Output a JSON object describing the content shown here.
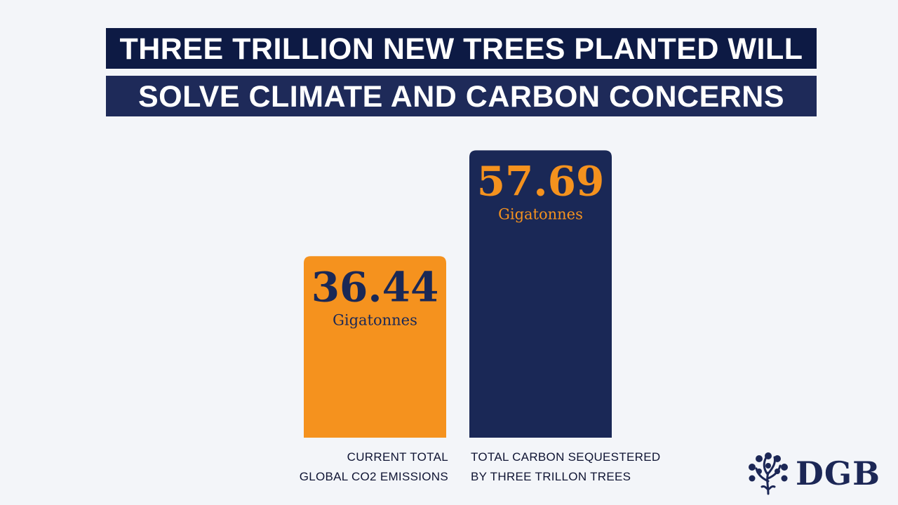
{
  "header": {
    "line1": "THREE TRILLION NEW TREES PLANTED WILL",
    "line2": "SOLVE CLIMATE AND CARBON CONCERNS"
  },
  "chart_data": {
    "type": "bar",
    "categories": [
      [
        "CURRENT TOTAL",
        "GLOBAL CO2 EMISSIONS"
      ],
      [
        "TOTAL CARBON SEQUESTERED",
        "BY THREE TRILLON TREES"
      ]
    ],
    "values": [
      36.44,
      57.69
    ],
    "value_labels": [
      "36.44",
      "57.69"
    ],
    "unit_label": "Gigatonnes",
    "bar_colors": [
      "#f5921e",
      "#1a2856"
    ],
    "value_text_colors": [
      "#1a2856",
      "#f5921e"
    ],
    "grid": false,
    "axes_visible": false
  },
  "logo": {
    "text": "DGB",
    "color": "#1c2756",
    "icon": "tree-icon"
  }
}
